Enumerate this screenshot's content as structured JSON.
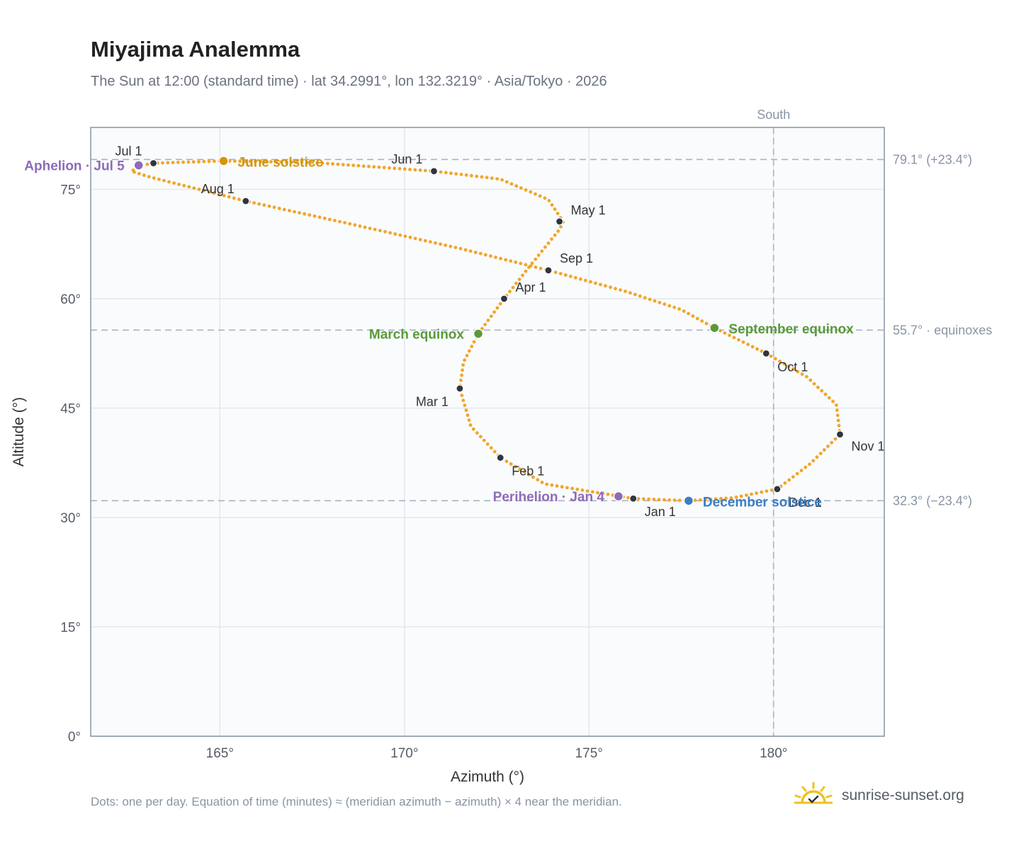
{
  "title": "Miyajima Analemma",
  "subtitle": "The Sun at 12:00 (standard time) · lat 34.2991°, lon 132.3219° · Asia/Tokyo · 2026",
  "footnote": "Dots: one per day. Equation of time (minutes) ≈ (meridian azimuth − azimuth) × 4 near the meridian.",
  "brand": "sunrise-sunset.org",
  "chart_data": {
    "type": "scatter",
    "xlabel": "Azimuth (°)",
    "ylabel": "Altitude (°)",
    "xlim": [
      161.5,
      183
    ],
    "ylim": [
      0,
      83.5
    ],
    "x_ticks": [
      {
        "value": 165,
        "label": "165°"
      },
      {
        "value": 170,
        "label": "170°"
      },
      {
        "value": 175,
        "label": "175°"
      },
      {
        "value": 180,
        "label": "180°"
      }
    ],
    "y_ticks": [
      {
        "value": 0,
        "label": "0°"
      },
      {
        "value": 15,
        "label": "15°"
      },
      {
        "value": 30,
        "label": "30°"
      },
      {
        "value": 45,
        "label": "45°"
      },
      {
        "value": 60,
        "label": "60°"
      },
      {
        "value": 75,
        "label": "75°"
      }
    ],
    "grid": true,
    "meridian": {
      "x": 180,
      "label": "South"
    },
    "reference_lines": [
      {
        "y": 79.1,
        "label": "79.1° (+23.4°)"
      },
      {
        "y": 55.7,
        "label": "55.7° · equinoxes"
      },
      {
        "y": 32.3,
        "label": "32.3° (−23.4°)"
      }
    ],
    "curve_color": "#f2a52b",
    "curve_points": [
      [
        176.2,
        32.6
      ],
      [
        173.8,
        34.6
      ],
      [
        172.6,
        38.2
      ],
      [
        171.8,
        42.5
      ],
      [
        171.5,
        47.7
      ],
      [
        171.6,
        51.3
      ],
      [
        172.0,
        55.2
      ],
      [
        172.7,
        60.0
      ],
      [
        173.4,
        64.5
      ],
      [
        174.2,
        69.5
      ],
      [
        174.3,
        70.6
      ],
      [
        173.9,
        73.6
      ],
      [
        172.6,
        76.4
      ],
      [
        170.8,
        77.5
      ],
      [
        167.5,
        78.7
      ],
      [
        165.1,
        78.9
      ],
      [
        163.2,
        78.6
      ],
      [
        162.9,
        78.3
      ],
      [
        162.6,
        77.5
      ],
      [
        163.1,
        76.7
      ],
      [
        165.7,
        73.4
      ],
      [
        168.5,
        70.3
      ],
      [
        171.5,
        66.9
      ],
      [
        173.9,
        63.9
      ],
      [
        176.0,
        61.0
      ],
      [
        177.5,
        58.5
      ],
      [
        178.4,
        56.0
      ],
      [
        179.8,
        52.5
      ],
      [
        180.9,
        49.3
      ],
      [
        181.7,
        45.5
      ],
      [
        181.8,
        41.4
      ],
      [
        181.0,
        37.4
      ],
      [
        180.1,
        33.9
      ],
      [
        178.9,
        32.7
      ],
      [
        177.7,
        32.3
      ],
      [
        176.2,
        32.6
      ]
    ],
    "months": [
      {
        "label": "Jan 1",
        "x": 176.2,
        "y": 32.6
      },
      {
        "label": "Feb 1",
        "x": 172.6,
        "y": 38.2
      },
      {
        "label": "Mar 1",
        "x": 171.5,
        "y": 47.7
      },
      {
        "label": "Apr 1",
        "x": 172.7,
        "y": 60.0
      },
      {
        "label": "May 1",
        "x": 174.2,
        "y": 70.6
      },
      {
        "label": "Jun 1",
        "x": 170.8,
        "y": 77.5
      },
      {
        "label": "Jul 1",
        "x": 163.2,
        "y": 78.6
      },
      {
        "label": "Aug 1",
        "x": 165.7,
        "y": 73.4
      },
      {
        "label": "Sep 1",
        "x": 173.9,
        "y": 63.9
      },
      {
        "label": "Oct 1",
        "x": 179.8,
        "y": 52.5
      },
      {
        "label": "Nov 1",
        "x": 181.8,
        "y": 41.4
      },
      {
        "label": "Dec 1",
        "x": 180.1,
        "y": 33.9
      }
    ],
    "events": [
      {
        "label": "Aphelion · Jul 5",
        "x": 162.8,
        "y": 78.3,
        "color": "#8e6bb8"
      },
      {
        "label": "June solstice",
        "x": 165.1,
        "y": 78.9,
        "color": "#d4950f"
      },
      {
        "label": "March equinox",
        "x": 172.0,
        "y": 55.2,
        "color": "#5a9a3a"
      },
      {
        "label": "September equinox",
        "x": 178.4,
        "y": 56.0,
        "color": "#5a9a3a"
      },
      {
        "label": "Perihelion · Jan 4",
        "x": 175.8,
        "y": 32.9,
        "color": "#8e6bb8"
      },
      {
        "label": "December solstice",
        "x": 177.7,
        "y": 32.3,
        "color": "#3b7dc4"
      }
    ]
  }
}
